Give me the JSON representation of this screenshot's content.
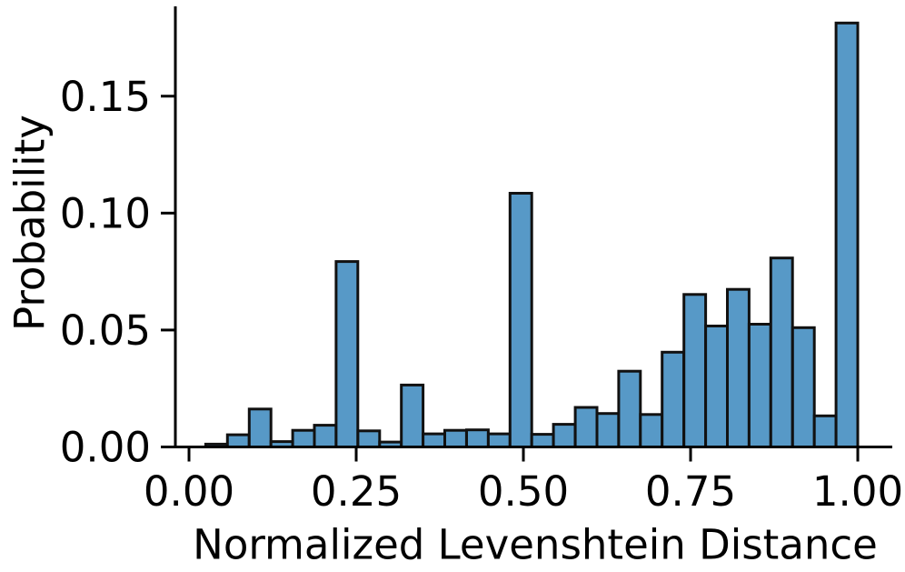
{
  "figure": {
    "colors": {
      "background": "#ffffff",
      "bar_fill": "#5799c7",
      "bar_edge": "#111111",
      "axis": "#000000",
      "text": "#000000"
    }
  },
  "chart_data": {
    "type": "bar",
    "subtype": "histogram",
    "title": "",
    "xlabel": "Normalized Levenshtein Distance",
    "ylabel": "Probability",
    "bin_start": 0.025,
    "bin_width": 0.0325,
    "values": [
      0.0012,
      0.0052,
      0.0162,
      0.0023,
      0.0071,
      0.0093,
      0.0793,
      0.0069,
      0.0021,
      0.0265,
      0.0056,
      0.0071,
      0.0073,
      0.0056,
      0.1085,
      0.0054,
      0.0097,
      0.0169,
      0.0143,
      0.0324,
      0.0139,
      0.0405,
      0.0652,
      0.0517,
      0.0674,
      0.0525,
      0.0808,
      0.051,
      0.0133,
      0.1813
    ],
    "x_ticks": {
      "values": [
        0,
        0.25,
        0.5,
        0.75,
        1.0
      ],
      "labels": [
        "0.00",
        "0.25",
        "0.50",
        "0.75",
        "1.00"
      ]
    },
    "y_ticks": {
      "values": [
        0,
        0.05,
        0.1,
        0.15
      ],
      "labels": [
        "0.00",
        "0.05",
        "0.10",
        "0.15"
      ]
    },
    "xlim": [
      -0.0204,
      1.0516
    ],
    "ylim": [
      0,
      0.1884
    ],
    "grid": false,
    "legend": false
  }
}
